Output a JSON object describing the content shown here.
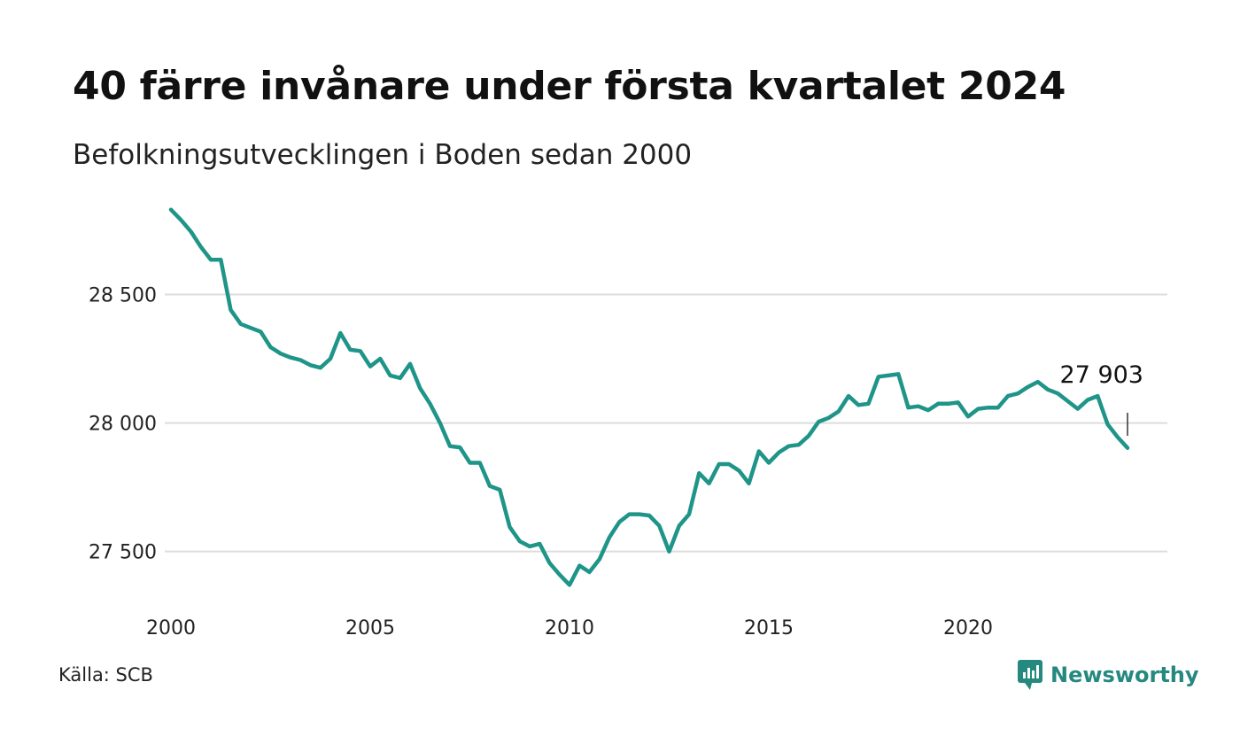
{
  "header": {
    "title": "40 färre invånare under första kvartalet 2024",
    "subtitle": "Befolkningsutvecklingen i Boden sedan 2000"
  },
  "footer": {
    "source": "Källa: SCB",
    "brand_name": "Newsworthy",
    "brand_icon": "bar-chart-speech-bubble-icon"
  },
  "colors": {
    "line": "#1f9488",
    "grid": "#dddddd",
    "text": "#111111",
    "brand": "#25897f"
  },
  "chart_data": {
    "type": "line",
    "title": "40 färre invånare under första kvartalet 2024",
    "subtitle": "Befolkningsutvecklingen i Boden sedan 2000",
    "xlabel": "",
    "ylabel": "",
    "xlim": [
      2000,
      2025
    ],
    "ylim": [
      27330,
      28860
    ],
    "x_ticks": [
      2000,
      2005,
      2010,
      2015,
      2020
    ],
    "x_tick_labels": [
      "2000",
      "2005",
      "2010",
      "2015",
      "2020"
    ],
    "y_ticks": [
      27500,
      28000,
      28500
    ],
    "y_tick_labels": [
      "27 500",
      "28 000",
      "28 500"
    ],
    "grid": "horizontal",
    "legend": "none",
    "end_label": "27 903",
    "series": [
      {
        "x": [
          "2000 K1",
          "2000 K2",
          "2000 K3",
          "2000 K4",
          "2001 K1",
          "2001 K2",
          "2001 K3",
          "2001 K4",
          "2002 K1",
          "2002 K2",
          "2002 K3",
          "2002 K4",
          "2003 K1",
          "2003 K2",
          "2003 K3",
          "2003 K4",
          "2004 K1",
          "2004 K2",
          "2004 K3",
          "2004 K4",
          "2005 K1",
          "2005 K2",
          "2005 K3",
          "2005 K4",
          "2006 K1",
          "2006 K2",
          "2006 K3",
          "2006 K4",
          "2007 K1",
          "2007 K2",
          "2007 K3",
          "2007 K4",
          "2008 K1",
          "2008 K2",
          "2008 K3",
          "2008 K4",
          "2009 K1",
          "2009 K2",
          "2009 K3",
          "2009 K4",
          "2010 K1",
          "2010 K2",
          "2010 K3",
          "2010 K4",
          "2011 K1",
          "2011 K2",
          "2011 K3",
          "2011 K4",
          "2012 K1",
          "2012 K2",
          "2012 K3",
          "2012 K4",
          "2013 K1",
          "2013 K2",
          "2013 K3",
          "2013 K4",
          "2014 K1",
          "2014 K2",
          "2014 K3",
          "2014 K4",
          "2015 K1",
          "2015 K2",
          "2015 K3",
          "2015 K4",
          "2016 K1",
          "2016 K2",
          "2016 K3",
          "2016 K4",
          "2017 K1",
          "2017 K2",
          "2017 K3",
          "2017 K4",
          "2018 K1",
          "2018 K2",
          "2018 K3",
          "2018 K4",
          "2019 K1",
          "2019 K2",
          "2019 K3",
          "2019 K4",
          "2020 K1",
          "2020 K2",
          "2020 K3",
          "2020 K4",
          "2021 K1",
          "2021 K2",
          "2021 K3",
          "2021 K4",
          "2022 K1",
          "2022 K2",
          "2022 K3",
          "2022 K4",
          "2023 K1",
          "2023 K2",
          "2023 K3",
          "2023 K4",
          "2024 K1"
        ],
        "y": [
          28830,
          28790,
          28745,
          28685,
          28635,
          28635,
          28440,
          28385,
          28370,
          28355,
          28295,
          28270,
          28255,
          28245,
          28225,
          28215,
          28250,
          28350,
          28285,
          28280,
          28220,
          28250,
          28185,
          28175,
          28230,
          28135,
          28075,
          28000,
          27910,
          27905,
          27845,
          27845,
          27755,
          27740,
          27595,
          27540,
          27520,
          27530,
          27455,
          27410,
          27370,
          27445,
          27420,
          27470,
          27555,
          27615,
          27645,
          27645,
          27640,
          27600,
          27500,
          27600,
          27645,
          27805,
          27765,
          27840,
          27840,
          27815,
          27765,
          27890,
          27845,
          27885,
          27910,
          27915,
          27950,
          28005,
          28020,
          28045,
          28105,
          28070,
          28075,
          28180,
          28185,
          28190,
          28060,
          28065,
          28050,
          28075,
          28075,
          28080,
          28025,
          28055,
          28060,
          28060,
          28105,
          28115,
          28140,
          28160,
          28130,
          28115,
          28085,
          28055,
          28090,
          28105,
          27995,
          27945,
          27903
        ]
      }
    ]
  }
}
